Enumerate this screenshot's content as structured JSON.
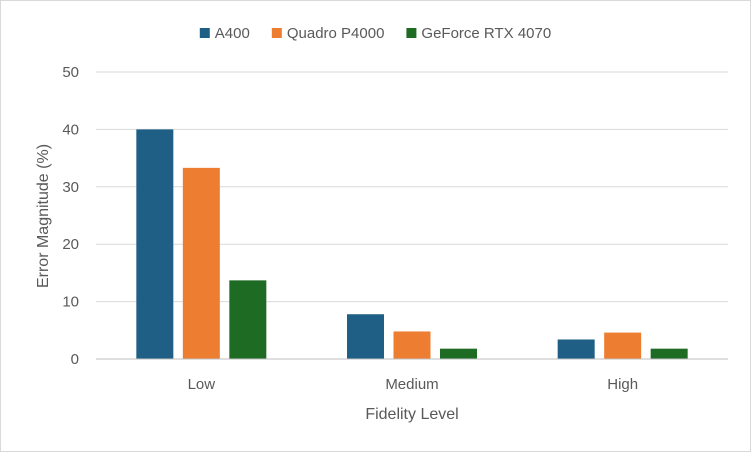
{
  "chart_data": {
    "type": "bar",
    "title": "",
    "xlabel": "Fidelity Level",
    "ylabel": "Error Magnitude (%)",
    "categories": [
      "Low",
      "Medium",
      "High"
    ],
    "series": [
      {
        "name": "A400",
        "color": "#1f5f86",
        "values": [
          40.0,
          7.8,
          3.4
        ]
      },
      {
        "name": "Quadro P4000",
        "color": "#ed7d31",
        "values": [
          33.3,
          4.8,
          4.6
        ]
      },
      {
        "name": "GeForce RTX 4070",
        "color": "#1e6b24",
        "values": [
          13.7,
          1.8,
          1.8
        ]
      }
    ],
    "ylim": [
      0,
      50
    ],
    "yticks": [
      "0",
      "10",
      "20",
      "30",
      "40",
      "50"
    ],
    "grid": true,
    "legend_position": "top"
  }
}
